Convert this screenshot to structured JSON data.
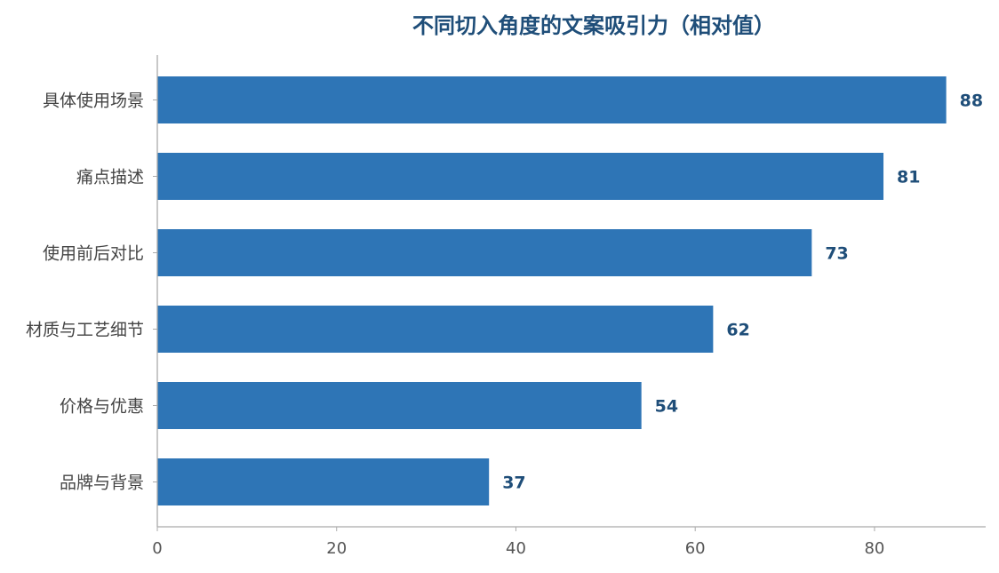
{
  "chart_data": {
    "type": "bar",
    "orientation": "horizontal",
    "title": "不同切入角度的文案吸引力（相对值）",
    "xlabel": "",
    "ylabel": "",
    "categories": [
      "具体使用场景",
      "痛点描述",
      "使用前后对比",
      "材质与工艺细节",
      "价格与优惠",
      "品牌与背景"
    ],
    "values": [
      88,
      81,
      73,
      62,
      54,
      37
    ],
    "xlim": [
      0,
      92.4
    ],
    "x_ticks": [
      0,
      20,
      40,
      60,
      80
    ],
    "grid": false,
    "data_labels": true
  },
  "colors": {
    "bar": "#2E75B6",
    "title": "#1F4E79",
    "value_label": "#1F4E79",
    "axis": "#AAAAAA",
    "tick_text": "#555555",
    "category_text": "#444444"
  }
}
